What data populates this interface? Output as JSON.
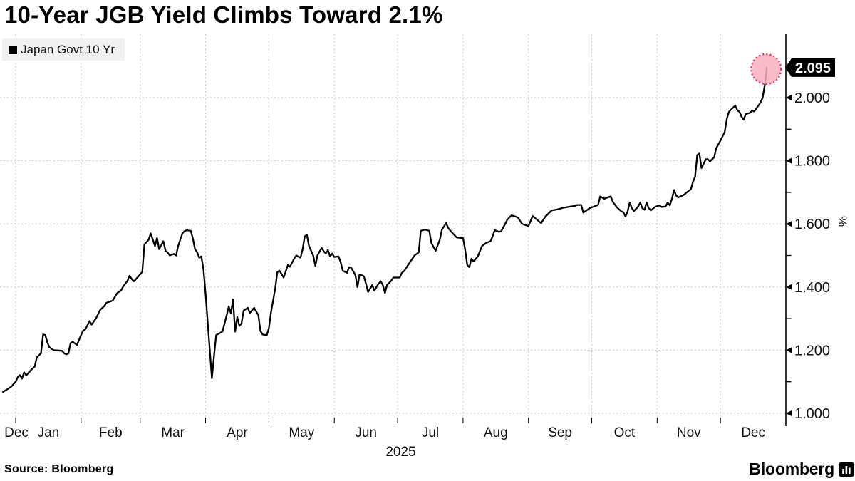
{
  "title": "10-Year JGB Yield Climbs Toward 2.1%",
  "legend": {
    "label": "Japan Govt 10 Yr",
    "marker_color": "#000000"
  },
  "source": "Source:  Bloomberg",
  "brand": {
    "name": "Bloomberg"
  },
  "last_value_label": "2.095",
  "colors": {
    "line": "#000000",
    "grid": "#c9c9c9",
    "axis": "#000000",
    "legend_bg": "#f1f1f1",
    "badge_bg": "#000000",
    "badge_text": "#ffffff",
    "highlight_fill": "#f8afbf",
    "highlight_stroke": "#ef2e5d",
    "text": "#111111"
  },
  "chart_data": {
    "type": "line",
    "title": "10-Year JGB Yield Climbs Toward 2.1%",
    "series_name": "Japan Govt 10 Yr",
    "unit": "%",
    "ylabel": "%",
    "ylim": [
      1.0,
      2.14
    ],
    "yticks_major": [
      1.0,
      1.2,
      1.4,
      1.6,
      1.8,
      2.0
    ],
    "yticks_minor": [
      1.1,
      1.3,
      1.5,
      1.7,
      1.9
    ],
    "grid": true,
    "legend_position": "top-left",
    "x_axis": {
      "start": "2024-12-26",
      "end": "2026-01-01",
      "month_labels": [
        "Dec",
        "Jan",
        "Feb",
        "Mar",
        "Apr",
        "May",
        "Jun",
        "Jul",
        "Aug",
        "Sep",
        "Oct",
        "Nov",
        "Dec"
      ],
      "year_label": "2025"
    },
    "last_point": {
      "date": "2025-12-23",
      "value": 2.095
    },
    "points": [
      [
        "2024-12-26",
        1.068
      ],
      [
        "2024-12-28",
        1.076
      ],
      [
        "2024-12-30",
        1.085
      ],
      [
        "2024-12-31",
        1.093
      ],
      [
        "2025-01-01",
        1.1
      ],
      [
        "2025-01-02",
        1.115
      ],
      [
        "2025-01-03",
        1.121
      ],
      [
        "2025-01-04",
        1.11
      ],
      [
        "2025-01-05",
        1.13
      ],
      [
        "2025-01-06",
        1.12
      ],
      [
        "2025-01-08",
        1.135
      ],
      [
        "2025-01-09",
        1.142
      ],
      [
        "2025-01-10",
        1.148
      ],
      [
        "2025-01-11",
        1.177
      ],
      [
        "2025-01-13",
        1.19
      ],
      [
        "2025-01-14",
        1.25
      ],
      [
        "2025-01-15",
        1.248
      ],
      [
        "2025-01-16",
        1.225
      ],
      [
        "2025-01-17",
        1.209
      ],
      [
        "2025-01-19",
        1.2
      ],
      [
        "2025-01-21",
        1.199
      ],
      [
        "2025-01-23",
        1.198
      ],
      [
        "2025-01-24",
        1.19
      ],
      [
        "2025-01-25",
        1.187
      ],
      [
        "2025-01-26",
        1.19
      ],
      [
        "2025-01-27",
        1.222
      ],
      [
        "2025-01-28",
        1.227
      ],
      [
        "2025-01-30",
        1.216
      ],
      [
        "2025-02-01",
        1.248
      ],
      [
        "2025-02-02",
        1.262
      ],
      [
        "2025-02-03",
        1.266
      ],
      [
        "2025-02-05",
        1.292
      ],
      [
        "2025-02-06",
        1.281
      ],
      [
        "2025-02-08",
        1.3
      ],
      [
        "2025-02-10",
        1.327
      ],
      [
        "2025-02-12",
        1.34
      ],
      [
        "2025-02-13",
        1.35
      ],
      [
        "2025-02-16",
        1.357
      ],
      [
        "2025-02-18",
        1.38
      ],
      [
        "2025-02-20",
        1.39
      ],
      [
        "2025-02-21",
        1.402
      ],
      [
        "2025-02-23",
        1.42
      ],
      [
        "2025-02-24",
        1.436
      ],
      [
        "2025-02-25",
        1.425
      ],
      [
        "2025-02-26",
        1.418
      ],
      [
        "2025-02-27",
        1.425
      ],
      [
        "2025-03-01",
        1.44
      ],
      [
        "2025-03-02",
        1.448
      ],
      [
        "2025-03-03",
        1.535
      ],
      [
        "2025-03-05",
        1.55
      ],
      [
        "2025-03-06",
        1.57
      ],
      [
        "2025-03-08",
        1.53
      ],
      [
        "2025-03-09",
        1.555
      ],
      [
        "2025-03-10",
        1.52
      ],
      [
        "2025-03-12",
        1.545
      ],
      [
        "2025-03-13",
        1.515
      ],
      [
        "2025-03-14",
        1.51
      ],
      [
        "2025-03-15",
        1.5
      ],
      [
        "2025-03-17",
        1.505
      ],
      [
        "2025-03-18",
        1.5
      ],
      [
        "2025-03-19",
        1.53
      ],
      [
        "2025-03-21",
        1.57
      ],
      [
        "2025-03-22",
        1.577
      ],
      [
        "2025-03-23",
        1.58
      ],
      [
        "2025-03-25",
        1.578
      ],
      [
        "2025-03-26",
        1.553
      ],
      [
        "2025-03-27",
        1.52
      ],
      [
        "2025-03-28",
        1.51
      ],
      [
        "2025-03-29",
        1.493
      ],
      [
        "2025-03-30",
        1.497
      ],
      [
        "2025-03-31",
        1.455
      ],
      [
        "2025-04-01",
        1.38
      ],
      [
        "2025-04-02",
        1.289
      ],
      [
        "2025-04-03",
        1.198
      ],
      [
        "2025-04-04",
        1.111
      ],
      [
        "2025-04-05",
        1.182
      ],
      [
        "2025-04-06",
        1.248
      ],
      [
        "2025-04-08",
        1.255
      ],
      [
        "2025-04-09",
        1.259
      ],
      [
        "2025-04-11",
        1.311
      ],
      [
        "2025-04-12",
        1.339
      ],
      [
        "2025-04-13",
        1.316
      ],
      [
        "2025-04-14",
        1.361
      ],
      [
        "2025-04-15",
        1.259
      ],
      [
        "2025-04-16",
        1.305
      ],
      [
        "2025-04-17",
        1.277
      ],
      [
        "2025-04-18",
        1.284
      ],
      [
        "2025-04-19",
        1.325
      ],
      [
        "2025-04-21",
        1.334
      ],
      [
        "2025-04-22",
        1.318
      ],
      [
        "2025-04-24",
        1.334
      ],
      [
        "2025-04-26",
        1.311
      ],
      [
        "2025-04-27",
        1.26
      ],
      [
        "2025-04-28",
        1.25
      ],
      [
        "2025-04-30",
        1.247
      ],
      [
        "2025-05-01",
        1.27
      ],
      [
        "2025-05-02",
        1.32
      ],
      [
        "2025-05-04",
        1.395
      ],
      [
        "2025-05-05",
        1.447
      ],
      [
        "2025-05-06",
        1.452
      ],
      [
        "2025-05-08",
        1.43
      ],
      [
        "2025-05-10",
        1.47
      ],
      [
        "2025-05-11",
        1.464
      ],
      [
        "2025-05-13",
        1.49
      ],
      [
        "2025-05-14",
        1.5
      ],
      [
        "2025-05-16",
        1.493
      ],
      [
        "2025-05-17",
        1.52
      ],
      [
        "2025-05-18",
        1.56
      ],
      [
        "2025-05-19",
        1.566
      ],
      [
        "2025-05-20",
        1.53
      ],
      [
        "2025-05-22",
        1.5
      ],
      [
        "2025-05-23",
        1.467
      ],
      [
        "2025-05-24",
        1.5
      ],
      [
        "2025-05-26",
        1.524
      ],
      [
        "2025-05-27",
        1.513
      ],
      [
        "2025-05-28",
        1.506
      ],
      [
        "2025-05-29",
        1.517
      ],
      [
        "2025-05-30",
        1.497
      ],
      [
        "2025-05-31",
        1.506
      ],
      [
        "2025-06-01",
        1.495
      ],
      [
        "2025-06-03",
        1.497
      ],
      [
        "2025-06-04",
        1.479
      ],
      [
        "2025-06-05",
        1.452
      ],
      [
        "2025-06-07",
        1.445
      ],
      [
        "2025-06-08",
        1.463
      ],
      [
        "2025-06-09",
        1.461
      ],
      [
        "2025-06-11",
        1.438
      ],
      [
        "2025-06-12",
        1.4
      ],
      [
        "2025-06-13",
        1.44
      ],
      [
        "2025-06-15",
        1.434
      ],
      [
        "2025-06-16",
        1.411
      ],
      [
        "2025-06-17",
        1.384
      ],
      [
        "2025-06-19",
        1.406
      ],
      [
        "2025-06-20",
        1.388
      ],
      [
        "2025-06-21",
        1.4
      ],
      [
        "2025-06-22",
        1.411
      ],
      [
        "2025-06-23",
        1.418
      ],
      [
        "2025-06-24",
        1.406
      ],
      [
        "2025-06-25",
        1.381
      ],
      [
        "2025-06-26",
        1.406
      ],
      [
        "2025-06-28",
        1.42
      ],
      [
        "2025-06-29",
        1.43
      ],
      [
        "2025-07-02",
        1.43
      ],
      [
        "2025-07-03",
        1.445
      ],
      [
        "2025-07-04",
        1.45
      ],
      [
        "2025-07-06",
        1.47
      ],
      [
        "2025-07-08",
        1.49
      ],
      [
        "2025-07-09",
        1.5
      ],
      [
        "2025-07-11",
        1.51
      ],
      [
        "2025-07-12",
        1.578
      ],
      [
        "2025-07-14",
        1.582
      ],
      [
        "2025-07-16",
        1.578
      ],
      [
        "2025-07-17",
        1.54
      ],
      [
        "2025-07-19",
        1.515
      ],
      [
        "2025-07-21",
        1.55
      ],
      [
        "2025-07-22",
        1.582
      ],
      [
        "2025-07-24",
        1.603
      ],
      [
        "2025-07-25",
        1.587
      ],
      [
        "2025-07-27",
        1.571
      ],
      [
        "2025-07-29",
        1.557
      ],
      [
        "2025-08-01",
        1.555
      ],
      [
        "2025-08-02",
        1.519
      ],
      [
        "2025-08-03",
        1.47
      ],
      [
        "2025-08-04",
        1.463
      ],
      [
        "2025-08-05",
        1.49
      ],
      [
        "2025-08-06",
        1.481
      ],
      [
        "2025-08-08",
        1.497
      ],
      [
        "2025-08-10",
        1.53
      ],
      [
        "2025-08-12",
        1.54
      ],
      [
        "2025-08-14",
        1.545
      ],
      [
        "2025-08-15",
        1.56
      ],
      [
        "2025-08-16",
        1.58
      ],
      [
        "2025-08-18",
        1.575
      ],
      [
        "2025-08-19",
        1.576
      ],
      [
        "2025-08-21",
        1.6
      ],
      [
        "2025-08-22",
        1.614
      ],
      [
        "2025-08-24",
        1.627
      ],
      [
        "2025-08-26",
        1.623
      ],
      [
        "2025-08-27",
        1.62
      ],
      [
        "2025-08-29",
        1.6
      ],
      [
        "2025-09-01",
        1.593
      ],
      [
        "2025-09-03",
        1.625
      ],
      [
        "2025-09-05",
        1.614
      ],
      [
        "2025-09-07",
        1.602
      ],
      [
        "2025-09-09",
        1.623
      ],
      [
        "2025-09-12",
        1.643
      ],
      [
        "2025-09-14",
        1.645
      ],
      [
        "2025-09-18",
        1.652
      ],
      [
        "2025-09-21",
        1.655
      ],
      [
        "2025-09-23",
        1.657
      ],
      [
        "2025-09-24",
        1.66
      ],
      [
        "2025-09-26",
        1.66
      ],
      [
        "2025-09-27",
        1.636
      ],
      [
        "2025-09-29",
        1.645
      ],
      [
        "2025-09-30",
        1.65
      ],
      [
        "2025-10-02",
        1.655
      ],
      [
        "2025-10-04",
        1.66
      ],
      [
        "2025-10-05",
        1.687
      ],
      [
        "2025-10-07",
        1.68
      ],
      [
        "2025-10-09",
        1.685
      ],
      [
        "2025-10-10",
        1.687
      ],
      [
        "2025-10-11",
        1.67
      ],
      [
        "2025-10-13",
        1.652
      ],
      [
        "2025-10-15",
        1.64
      ],
      [
        "2025-10-16",
        1.637
      ],
      [
        "2025-10-17",
        1.623
      ],
      [
        "2025-10-18",
        1.64
      ],
      [
        "2025-10-19",
        1.668
      ],
      [
        "2025-10-20",
        1.65
      ],
      [
        "2025-10-21",
        1.641
      ],
      [
        "2025-10-23",
        1.655
      ],
      [
        "2025-10-24",
        1.668
      ],
      [
        "2025-10-25",
        1.65
      ],
      [
        "2025-10-26",
        1.645
      ],
      [
        "2025-10-27",
        1.668
      ],
      [
        "2025-10-28",
        1.65
      ],
      [
        "2025-10-29",
        1.643
      ],
      [
        "2025-10-30",
        1.648
      ],
      [
        "2025-10-31",
        1.654
      ],
      [
        "2025-11-02",
        1.659
      ],
      [
        "2025-11-03",
        1.654
      ],
      [
        "2025-11-05",
        1.655
      ],
      [
        "2025-11-06",
        1.668
      ],
      [
        "2025-11-07",
        1.659
      ],
      [
        "2025-11-08",
        1.68
      ],
      [
        "2025-11-09",
        1.707
      ],
      [
        "2025-11-10",
        1.69
      ],
      [
        "2025-11-11",
        1.684
      ],
      [
        "2025-11-12",
        1.687
      ],
      [
        "2025-11-13",
        1.69
      ],
      [
        "2025-11-14",
        1.694
      ],
      [
        "2025-11-15",
        1.7
      ],
      [
        "2025-11-17",
        1.71
      ],
      [
        "2025-11-18",
        1.734
      ],
      [
        "2025-11-19",
        1.75
      ],
      [
        "2025-11-20",
        1.818
      ],
      [
        "2025-11-21",
        1.823
      ],
      [
        "2025-11-22",
        1.777
      ],
      [
        "2025-11-23",
        1.79
      ],
      [
        "2025-11-24",
        1.805
      ],
      [
        "2025-11-25",
        1.805
      ],
      [
        "2025-11-26",
        1.798
      ],
      [
        "2025-11-28",
        1.811
      ],
      [
        "2025-11-29",
        1.84
      ],
      [
        "2025-12-01",
        1.864
      ],
      [
        "2025-12-03",
        1.891
      ],
      [
        "2025-12-04",
        1.932
      ],
      [
        "2025-12-05",
        1.955
      ],
      [
        "2025-12-08",
        1.975
      ],
      [
        "2025-12-09",
        1.96
      ],
      [
        "2025-12-10",
        1.955
      ],
      [
        "2025-12-11",
        1.94
      ],
      [
        "2025-12-12",
        1.93
      ],
      [
        "2025-12-13",
        1.948
      ],
      [
        "2025-12-14",
        1.95
      ],
      [
        "2025-12-15",
        1.952
      ],
      [
        "2025-12-16",
        1.959
      ],
      [
        "2025-12-17",
        1.956
      ],
      [
        "2025-12-18",
        1.965
      ],
      [
        "2025-12-19",
        1.975
      ],
      [
        "2025-12-20",
        1.985
      ],
      [
        "2025-12-21",
        2.0
      ],
      [
        "2025-12-22",
        2.04
      ],
      [
        "2025-12-23",
        2.095
      ]
    ]
  }
}
